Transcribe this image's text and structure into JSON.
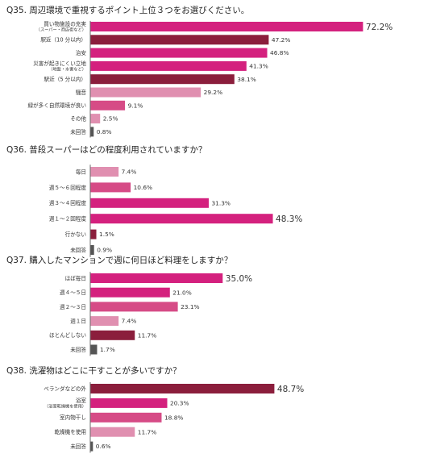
{
  "colors": {
    "pink_vivid": "#d4217e",
    "wine": "#8b1e3c",
    "pink_mid": "#d64b86",
    "pink_light": "#e08fb0",
    "gray": "#555555"
  },
  "chart_data": [
    {
      "type": "bar",
      "orientation": "horizontal",
      "title": "Q35. 周辺環境で重視するポイント上位３つをお選びください。",
      "categories": [
        [
          "買い物施設の充実",
          "（スーパー・商店街など）"
        ],
        [
          "駅近（10 分以内）"
        ],
        [
          "治安"
        ],
        [
          "災害が起きにくい立地",
          "（地盤・水害など）"
        ],
        [
          "駅近（5 分以内）"
        ],
        [
          "騒音"
        ],
        [
          "緑が多く自然環境が良い"
        ],
        [
          "その他"
        ],
        [
          "未回答"
        ]
      ],
      "values": [
        72.2,
        47.2,
        46.8,
        41.3,
        38.1,
        29.2,
        9.1,
        2.5,
        0.8
      ],
      "value_labels": [
        "72.2%",
        "47.2%",
        "46.8%",
        "41.3%",
        "38.1%",
        "29.2%",
        "9.1%",
        "2.5%",
        "0.8%"
      ],
      "bar_colors": [
        "#d4217e",
        "#8b1e3c",
        "#d4217e",
        "#d4217e",
        "#8b1e3c",
        "#e08fb0",
        "#d64b86",
        "#e08fb0",
        "#555555"
      ],
      "highlight_index": 0
    },
    {
      "type": "bar",
      "orientation": "horizontal",
      "title": "Q36. 普段スーパーはどの程度利用されていますか？",
      "categories": [
        [
          "毎日"
        ],
        [
          "週５～６回程度"
        ],
        [
          "週３～４回程度"
        ],
        [
          "週１～２回程度"
        ],
        [
          "行かない"
        ],
        [
          "未回答"
        ]
      ],
      "values": [
        7.4,
        10.6,
        31.3,
        48.3,
        1.5,
        0.9
      ],
      "value_labels": [
        "7.4%",
        "10.6%",
        "31.3%",
        "48.3%",
        "1.5%",
        "0.9%"
      ],
      "bar_colors": [
        "#e08fb0",
        "#d64b86",
        "#d4217e",
        "#d4217e",
        "#8b1e3c",
        "#555555"
      ],
      "highlight_index": 3
    },
    {
      "type": "bar",
      "orientation": "horizontal",
      "title": "Q37. 購入したマンションで週に何日ほど料理をしますか？",
      "categories": [
        [
          "ほぼ毎日"
        ],
        [
          "週４～５日"
        ],
        [
          "週２～３日"
        ],
        [
          "週１日"
        ],
        [
          "ほとんどしない"
        ],
        [
          "未回答"
        ]
      ],
      "values": [
        35.0,
        21.0,
        23.1,
        7.4,
        11.7,
        1.7
      ],
      "value_labels": [
        "35.0%",
        "21.0%",
        "23.1%",
        "7.4%",
        "11.7%",
        "1.7%"
      ],
      "bar_colors": [
        "#d4217e",
        "#d4217e",
        "#d64b86",
        "#e08fb0",
        "#8b1e3c",
        "#555555"
      ],
      "highlight_index": 0
    },
    {
      "type": "bar",
      "orientation": "horizontal",
      "title": "Q38. 洗濯物はどこに干すことが多いですか？",
      "categories": [
        [
          "ベランダなどの外"
        ],
        [
          "浴室",
          "（浴室乾燥機を使用）"
        ],
        [
          "室内物干し"
        ],
        [
          "乾燥機を使用"
        ],
        [
          "未回答"
        ]
      ],
      "values": [
        48.7,
        20.3,
        18.8,
        11.7,
        0.6
      ],
      "value_labels": [
        "48.7%",
        "20.3%",
        "18.8%",
        "11.7%",
        "0.6%"
      ],
      "bar_colors": [
        "#8b1e3c",
        "#d4217e",
        "#d64b86",
        "#e08fb0",
        "#555555"
      ],
      "highlight_index": 0
    }
  ]
}
